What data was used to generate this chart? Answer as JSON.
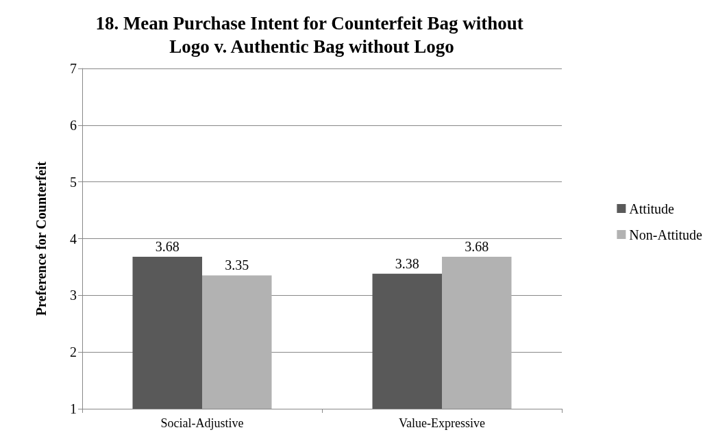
{
  "chart_data": {
    "type": "bar",
    "title": "18. Mean Purchase Intent for Counterfeit Bag without Logo v. Authentic Bag without Logo",
    "ylabel": "Preference for Counterfeit",
    "categories": [
      "Social-Adjustive",
      "Value-Expressive"
    ],
    "series": [
      {
        "name": "Attitude",
        "color": "#595959",
        "values": [
          3.68,
          3.38
        ]
      },
      {
        "name": "Non-Attitude",
        "color": "#b2b2b2",
        "values": [
          3.35,
          3.68
        ]
      }
    ],
    "ylim": [
      1,
      7
    ],
    "yticks": [
      1,
      2,
      3,
      4,
      5,
      6,
      7
    ],
    "grid": "y",
    "legend": "right",
    "data_labels": true
  }
}
